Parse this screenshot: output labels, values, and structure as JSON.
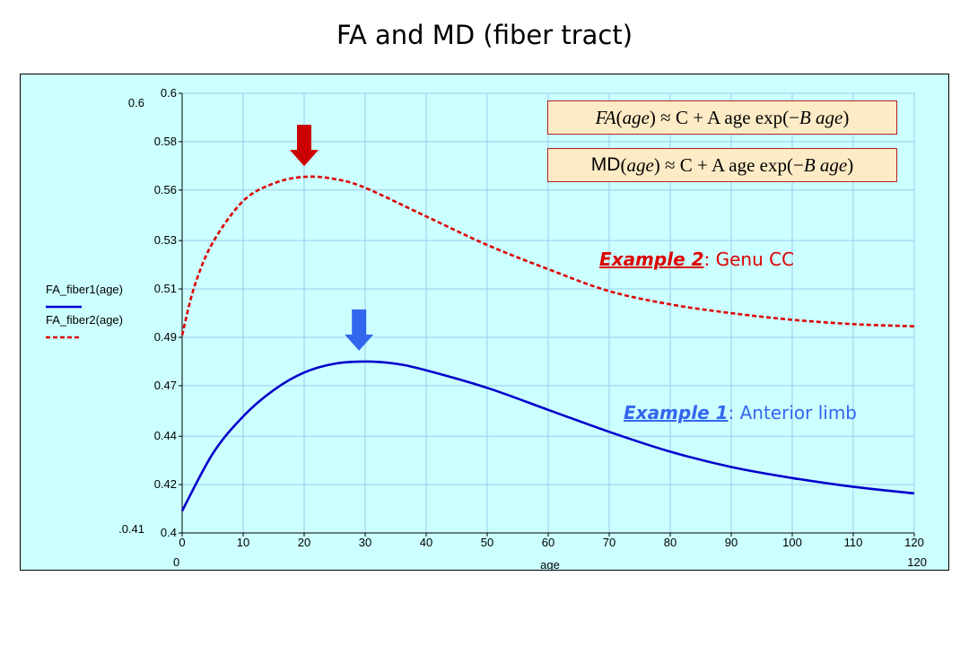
{
  "slide": {
    "title": "FA and MD (fiber tract)"
  },
  "formulas": {
    "fa": {
      "lhs": "FA",
      "arg": "age",
      "rhs_const": "C + A age exp",
      "rhs_inner": "B age"
    },
    "md": {
      "lhs": "MD",
      "arg": "age",
      "rhs_const": "C + A age exp",
      "rhs_inner": "B age"
    }
  },
  "annotations": {
    "example2": {
      "label": "Example 2",
      "text": ": Genu CC",
      "color": "#dd0000"
    },
    "example1": {
      "label": "Example 1",
      "text": ": Anterior limb",
      "color": "#3366ee"
    }
  },
  "colors": {
    "plot_background": "#ccffff",
    "grid": "#99ccee",
    "series1": "#0000cc",
    "series2": "#dd0000",
    "arrow_red": "#cc0000",
    "arrow_blue": "#3366ee"
  },
  "chart_data": {
    "type": "line",
    "title": "FA and MD (fiber tract)",
    "xlabel": "age",
    "ylabel": "",
    "xlim": [
      0,
      120
    ],
    "ylim": [
      0.4,
      0.6
    ],
    "x_ticks": [
      0,
      10,
      20,
      30,
      40,
      50,
      60,
      70,
      80,
      90,
      100,
      110,
      120
    ],
    "x_tick_labels": [
      "0",
      "10",
      "20",
      "30",
      "40",
      "50",
      "60",
      "70",
      "80",
      "90",
      "100",
      "110",
      "120"
    ],
    "y_ticks": [
      0.4,
      0.422,
      0.444,
      0.467,
      0.489,
      0.511,
      0.533,
      0.556,
      0.578,
      0.6
    ],
    "y_tick_labels": [
      "0.4",
      "0.42",
      "0.44",
      "0.47",
      "0.49",
      "0.51",
      "0.53",
      "0.56",
      "0.58",
      "0.6"
    ],
    "x_range_labels": {
      "min": "0",
      "max": "120"
    },
    "y_range_labels": {
      "min": ".0.41",
      "max": "0.6"
    },
    "grid": true,
    "legend_position": "left",
    "series": [
      {
        "name": "FA_fiber1(age)",
        "style": "solid",
        "x": [
          0,
          5,
          10,
          15,
          20,
          25,
          30,
          35,
          40,
          50,
          60,
          70,
          80,
          90,
          100,
          110,
          120
        ],
        "y": [
          0.41,
          0.436,
          0.453,
          0.465,
          0.473,
          0.477,
          0.478,
          0.477,
          0.474,
          0.466,
          0.456,
          0.446,
          0.437,
          0.43,
          0.425,
          0.421,
          0.418
        ]
      },
      {
        "name": "FA_fiber2(age)",
        "style": "dashed",
        "x": [
          0,
          2,
          5,
          10,
          15,
          20,
          25,
          30,
          40,
          50,
          60,
          70,
          80,
          90,
          100,
          110,
          120
        ],
        "y": [
          0.49,
          0.512,
          0.532,
          0.551,
          0.559,
          0.562,
          0.561,
          0.557,
          0.544,
          0.531,
          0.52,
          0.51,
          0.504,
          0.5,
          0.497,
          0.495,
          0.494
        ]
      }
    ],
    "markers": [
      {
        "label": "Example 2 peak",
        "x": 20,
        "y": 0.562,
        "color": "red"
      },
      {
        "label": "Example 1 peak",
        "x": 29,
        "y": 0.478,
        "color": "blue"
      }
    ]
  }
}
